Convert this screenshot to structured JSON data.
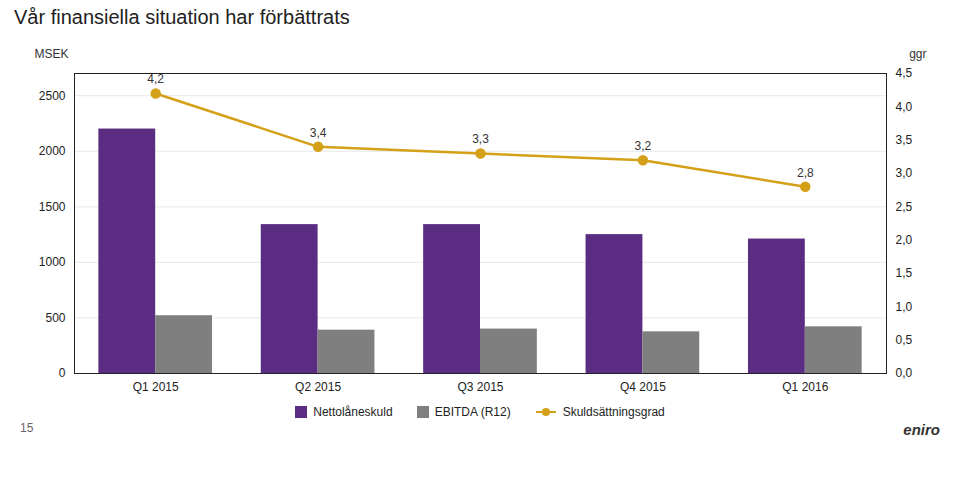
{
  "chart_data": {
    "type": "bar",
    "title": "Vår finansiella situation har förbättrats",
    "categories": [
      "Q1 2015",
      "Q2 2015",
      "Q3 2015",
      "Q4 2015",
      "Q1 2016"
    ],
    "series": [
      {
        "name": "Nettolåneskuld",
        "color": "#5B2D82",
        "values": [
          2200,
          1340,
          1340,
          1250,
          1210
        ]
      },
      {
        "name": "EBITDA (R12)",
        "color": "#7F7F7F",
        "values": [
          520,
          390,
          400,
          375,
          420
        ]
      },
      {
        "name": "Skuldsättningsgrad",
        "type": "line",
        "marker": "circle",
        "color": "#D4A017",
        "axis": "y2",
        "values": [
          4.2,
          3.4,
          3.3,
          3.2,
          2.8
        ],
        "value_labels": [
          "4,2",
          "3,4",
          "3,3",
          "3,2",
          "2,8"
        ],
        "data_labels": true
      }
    ],
    "ylabel": "MSEK",
    "y2label": "ggr",
    "ylim": [
      0,
      2700
    ],
    "yticks": [
      0,
      500,
      1000,
      1500,
      2000,
      2500
    ],
    "y2lim": [
      0,
      4.5
    ],
    "y2ticks": [
      {
        "value": 0.0,
        "label": "0,0"
      },
      {
        "value": 0.5,
        "label": "0,5"
      },
      {
        "value": 1.0,
        "label": "1,0"
      },
      {
        "value": 1.5,
        "label": "1,5"
      },
      {
        "value": 2.0,
        "label": "2,0"
      },
      {
        "value": 2.5,
        "label": "2,5"
      },
      {
        "value": 3.0,
        "label": "3,0"
      },
      {
        "value": 3.5,
        "label": "3,5"
      },
      {
        "value": 4.0,
        "label": "4,0"
      },
      {
        "value": 4.5,
        "label": "4,5"
      }
    ],
    "grid": true,
    "legend": "bottom",
    "annotations": [
      "15",
      "eniro"
    ]
  }
}
